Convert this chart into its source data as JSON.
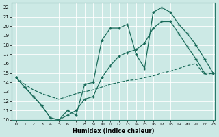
{
  "xlabel": "Humidex (Indice chaleur)",
  "xlim": [
    0,
    23
  ],
  "ylim": [
    10,
    22.5
  ],
  "xticks": [
    0,
    1,
    2,
    3,
    4,
    5,
    6,
    7,
    8,
    9,
    10,
    11,
    12,
    13,
    14,
    15,
    16,
    17,
    18,
    19,
    20,
    21,
    22,
    23
  ],
  "yticks": [
    10,
    11,
    12,
    13,
    14,
    15,
    16,
    17,
    18,
    19,
    20,
    21,
    22
  ],
  "bg_color": "#cce9e5",
  "line_color": "#1a6b5a",
  "grid_color": "#aed4d0",
  "line1_x": [
    0,
    1,
    2,
    3,
    4,
    5,
    6,
    7,
    8,
    9,
    10,
    11,
    12,
    13,
    14,
    15,
    16,
    17,
    18,
    19,
    20,
    21,
    22,
    23
  ],
  "line1_y": [
    14.5,
    13.5,
    12.5,
    11.5,
    10.2,
    10.0,
    11.0,
    10.5,
    13.8,
    14.0,
    18.5,
    19.8,
    19.8,
    20.2,
    17.0,
    15.5,
    21.5,
    22.0,
    21.5,
    20.2,
    19.2,
    18.0,
    16.5,
    15.0
  ],
  "line2_x": [
    0,
    1,
    2,
    3,
    4,
    5,
    6,
    7,
    8,
    9,
    10,
    11,
    12,
    13,
    14,
    15,
    16,
    17,
    18,
    19,
    20,
    21,
    22,
    23
  ],
  "line2_y": [
    14.5,
    13.5,
    12.5,
    11.5,
    10.2,
    10.0,
    10.5,
    11.0,
    12.2,
    12.5,
    14.5,
    15.8,
    16.8,
    17.2,
    17.5,
    18.2,
    19.8,
    20.5,
    20.5,
    19.2,
    17.8,
    16.5,
    15.0,
    15.0
  ],
  "line3_x": [
    0,
    1,
    2,
    3,
    4,
    5,
    6,
    7,
    8,
    9,
    10,
    11,
    12,
    13,
    14,
    15,
    16,
    17,
    18,
    19,
    20,
    21,
    22,
    23
  ],
  "line3_y": [
    14.5,
    13.8,
    13.2,
    12.8,
    12.5,
    12.2,
    12.5,
    12.8,
    13.0,
    13.2,
    13.5,
    13.8,
    14.0,
    14.2,
    14.3,
    14.5,
    14.7,
    15.0,
    15.2,
    15.5,
    15.8,
    16.0,
    14.8,
    15.0
  ]
}
